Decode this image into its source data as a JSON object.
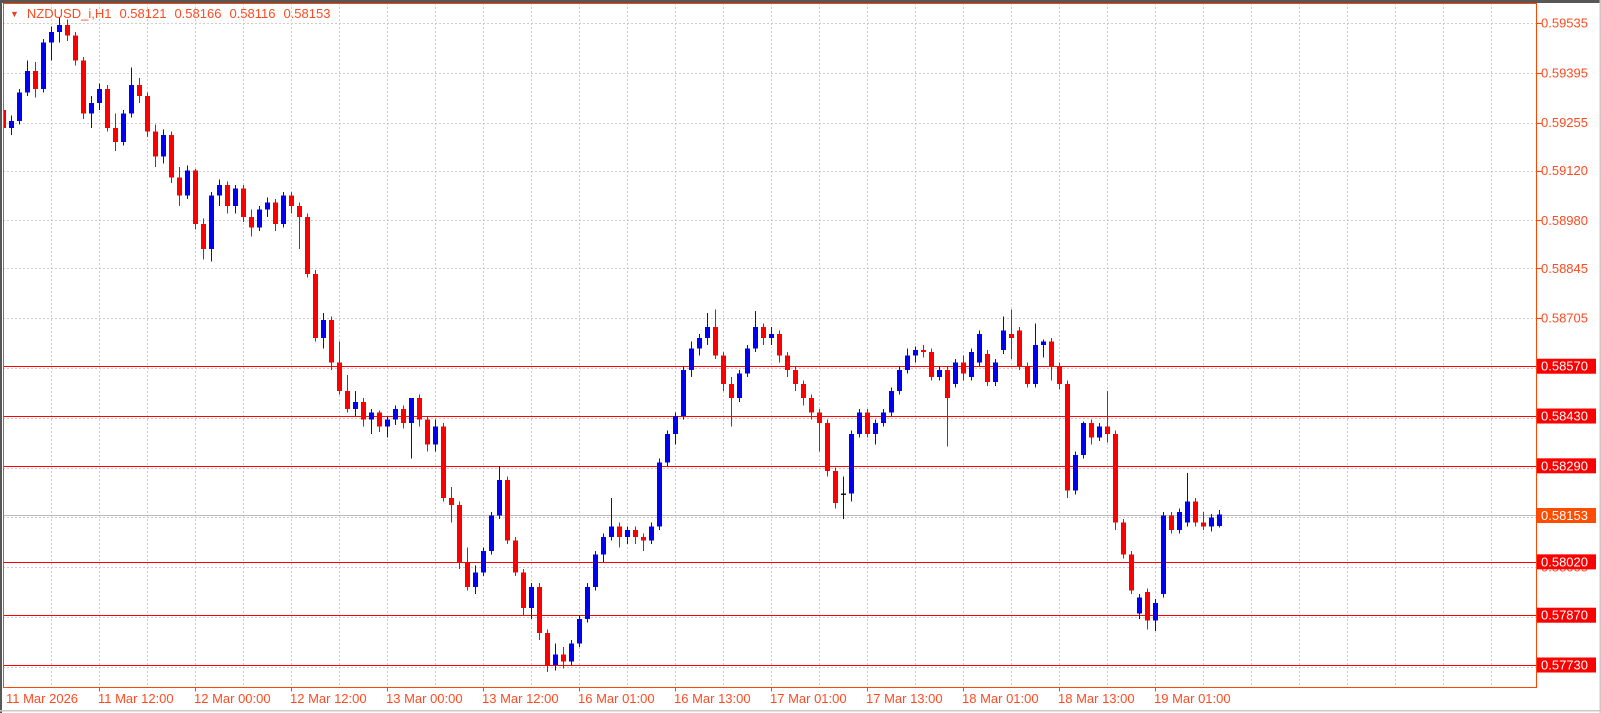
{
  "header": {
    "symbol": "NZDUSD_i,H1",
    "open": "0.58121",
    "high": "0.58166",
    "low": "0.58116",
    "close": "0.58153"
  },
  "colors": {
    "axis_text": "#ff4a21",
    "grid": "#cdcdcd",
    "bull": "#0000f2",
    "bear": "#fb0000",
    "doji_black": "#141414",
    "level_line": "#ff0000",
    "level_box": "#fb0000",
    "bid_line": "#bababa",
    "bid_box": "#ff4d00",
    "box_text": "#ffffff",
    "plot_border": "#ff4500",
    "frame_dark": "#575757",
    "frame_light": "#c9c9c9"
  },
  "chart_data": {
    "type": "candlestick",
    "title": "NZDUSD_i,H1",
    "symbol": "NZDUSD_i",
    "timeframe": "H1",
    "last_candle": {
      "open": 0.58121,
      "high": 0.58166,
      "low": 0.58116,
      "close": 0.58153
    },
    "y_axis": {
      "range": [
        0.5773,
        0.59535
      ],
      "visible_labels": [
        "0.59535",
        "0.59395",
        "0.59255",
        "0.59120",
        "0.58980",
        "0.58845",
        "0.58705"
      ],
      "grid_prices": [
        0.59535,
        0.59395,
        0.59255,
        0.5912,
        0.5898,
        0.58845,
        0.58705,
        0.58565,
        0.58425,
        0.58285,
        0.58145,
        0.58005,
        0.57865,
        0.57725
      ]
    },
    "level_lines": [
      0.5857,
      0.5843,
      0.5829,
      0.5802,
      0.5787,
      0.5773
    ],
    "bid": {
      "price": 0.58153,
      "label": "0.58153"
    },
    "x_axis": {
      "labels": [
        "11 Mar 2026",
        "11 Mar 12:00",
        "12 Mar 00:00",
        "12 Mar 12:00",
        "13 Mar 00:00",
        "13 Mar 12:00",
        "16 Mar 01:00",
        "16 Mar 13:00",
        "17 Mar 01:00",
        "17 Mar 13:00",
        "18 Mar 01:00",
        "18 Mar 13:00",
        "19 Mar 01:00"
      ]
    },
    "black_candle_index": 105,
    "candles": [
      [
        0.5929,
        0.59345,
        0.5918,
        0.5924
      ],
      [
        0.5924,
        0.59275,
        0.5922,
        0.5926
      ],
      [
        0.5926,
        0.5935,
        0.5925,
        0.5934
      ],
      [
        0.5934,
        0.5943,
        0.5933,
        0.594
      ],
      [
        0.594,
        0.59425,
        0.59325,
        0.5935
      ],
      [
        0.5935,
        0.5949,
        0.5934,
        0.5948
      ],
      [
        0.5948,
        0.59525,
        0.5943,
        0.5951
      ],
      [
        0.5951,
        0.5955,
        0.5948,
        0.5953
      ],
      [
        0.5953,
        0.59545,
        0.59485,
        0.595
      ],
      [
        0.595,
        0.5951,
        0.59415,
        0.5943
      ],
      [
        0.5943,
        0.5944,
        0.59265,
        0.5928
      ],
      [
        0.5928,
        0.5933,
        0.5924,
        0.5931
      ],
      [
        0.5931,
        0.59365,
        0.5929,
        0.5935
      ],
      [
        0.5935,
        0.5936,
        0.5923,
        0.5924
      ],
      [
        0.5924,
        0.5928,
        0.59175,
        0.592
      ],
      [
        0.592,
        0.5929,
        0.5919,
        0.5928
      ],
      [
        0.5928,
        0.5941,
        0.5927,
        0.5936
      ],
      [
        0.5936,
        0.5938,
        0.5931,
        0.5933
      ],
      [
        0.5933,
        0.5934,
        0.59215,
        0.5923
      ],
      [
        0.5923,
        0.5925,
        0.5913,
        0.5916
      ],
      [
        0.5916,
        0.59235,
        0.5914,
        0.5922
      ],
      [
        0.5922,
        0.5923,
        0.59085,
        0.591
      ],
      [
        0.591,
        0.5913,
        0.5902,
        0.5905
      ],
      [
        0.5905,
        0.59135,
        0.5904,
        0.5912
      ],
      [
        0.5912,
        0.59125,
        0.58955,
        0.5897
      ],
      [
        0.5897,
        0.58985,
        0.5887,
        0.589
      ],
      [
        0.589,
        0.5906,
        0.58865,
        0.5905
      ],
      [
        0.5905,
        0.59095,
        0.5902,
        0.5908
      ],
      [
        0.5908,
        0.5909,
        0.59,
        0.5902
      ],
      [
        0.5902,
        0.5908,
        0.59,
        0.5907
      ],
      [
        0.5907,
        0.5908,
        0.58975,
        0.5899
      ],
      [
        0.5899,
        0.5901,
        0.58935,
        0.5896
      ],
      [
        0.5896,
        0.5902,
        0.5895,
        0.5901
      ],
      [
        0.5901,
        0.59045,
        0.5899,
        0.5903
      ],
      [
        0.5903,
        0.5904,
        0.5895,
        0.5897
      ],
      [
        0.5897,
        0.5906,
        0.5896,
        0.5905
      ],
      [
        0.5905,
        0.5906,
        0.59,
        0.5902
      ],
      [
        0.5902,
        0.5903,
        0.589,
        0.5899
      ],
      [
        0.5899,
        0.59,
        0.5882,
        0.5883
      ],
      [
        0.5883,
        0.5884,
        0.5864,
        0.5865
      ],
      [
        0.5865,
        0.5872,
        0.5862,
        0.587
      ],
      [
        0.587,
        0.5871,
        0.5856,
        0.5858
      ],
      [
        0.5858,
        0.5864,
        0.5849,
        0.585
      ],
      [
        0.585,
        0.58545,
        0.5844,
        0.5845
      ],
      [
        0.5845,
        0.585,
        0.5843,
        0.5847
      ],
      [
        0.5847,
        0.5848,
        0.584,
        0.5842
      ],
      [
        0.5842,
        0.5845,
        0.5838,
        0.5844
      ],
      [
        0.5844,
        0.58445,
        0.58385,
        0.584
      ],
      [
        0.584,
        0.5843,
        0.5837,
        0.5842
      ],
      [
        0.5842,
        0.5846,
        0.58405,
        0.5845
      ],
      [
        0.5845,
        0.5846,
        0.58395,
        0.5841
      ],
      [
        0.5841,
        0.5848,
        0.5831,
        0.5848
      ],
      [
        0.5848,
        0.5849,
        0.584,
        0.5842
      ],
      [
        0.5842,
        0.5843,
        0.5833,
        0.5835
      ],
      [
        0.5835,
        0.5842,
        0.5833,
        0.584
      ],
      [
        0.584,
        0.5841,
        0.5819,
        0.582
      ],
      [
        0.582,
        0.5823,
        0.5813,
        0.5818
      ],
      [
        0.5818,
        0.5819,
        0.58,
        0.5802
      ],
      [
        0.5802,
        0.5806,
        0.5794,
        0.5795
      ],
      [
        0.5795,
        0.5801,
        0.5793,
        0.5799
      ],
      [
        0.5799,
        0.5806,
        0.5798,
        0.5805
      ],
      [
        0.5805,
        0.5816,
        0.5804,
        0.5815
      ],
      [
        0.5815,
        0.5829,
        0.5814,
        0.5825
      ],
      [
        0.5825,
        0.5826,
        0.5807,
        0.5808
      ],
      [
        0.5808,
        0.5809,
        0.5798,
        0.5799
      ],
      [
        0.5799,
        0.58,
        0.5787,
        0.5789
      ],
      [
        0.5789,
        0.5796,
        0.5786,
        0.5795
      ],
      [
        0.5795,
        0.5796,
        0.578,
        0.5782
      ],
      [
        0.5782,
        0.5783,
        0.5771,
        0.5773
      ],
      [
        0.5773,
        0.5779,
        0.57715,
        0.5776
      ],
      [
        0.5776,
        0.5778,
        0.5772,
        0.5774
      ],
      [
        0.5774,
        0.578,
        0.5773,
        0.5779
      ],
      [
        0.5779,
        0.5787,
        0.5778,
        0.5786
      ],
      [
        0.5786,
        0.5796,
        0.5785,
        0.5795
      ],
      [
        0.5795,
        0.5805,
        0.5794,
        0.5804
      ],
      [
        0.5804,
        0.581,
        0.5802,
        0.5809
      ],
      [
        0.5809,
        0.582,
        0.5808,
        0.5812
      ],
      [
        0.5812,
        0.5813,
        0.5806,
        0.5809
      ],
      [
        0.5809,
        0.5812,
        0.5807,
        0.5811
      ],
      [
        0.5811,
        0.5812,
        0.5807,
        0.5809
      ],
      [
        0.5809,
        0.581,
        0.5805,
        0.5808
      ],
      [
        0.5808,
        0.5813,
        0.5807,
        0.5812
      ],
      [
        0.5812,
        0.5831,
        0.5811,
        0.583
      ],
      [
        0.583,
        0.5839,
        0.5829,
        0.5838
      ],
      [
        0.5838,
        0.5844,
        0.5835,
        0.5843
      ],
      [
        0.5843,
        0.5857,
        0.5842,
        0.5856
      ],
      [
        0.5856,
        0.5864,
        0.5854,
        0.5862
      ],
      [
        0.5862,
        0.5866,
        0.586,
        0.5865
      ],
      [
        0.5865,
        0.5872,
        0.5863,
        0.5868
      ],
      [
        0.5868,
        0.5873,
        0.5859,
        0.586
      ],
      [
        0.586,
        0.5861,
        0.585,
        0.5852
      ],
      [
        0.5852,
        0.5854,
        0.584,
        0.5848
      ],
      [
        0.5848,
        0.5856,
        0.5847,
        0.5855
      ],
      [
        0.5855,
        0.5863,
        0.5854,
        0.5862
      ],
      [
        0.5862,
        0.58725,
        0.5861,
        0.5868
      ],
      [
        0.5868,
        0.5869,
        0.5863,
        0.5865
      ],
      [
        0.5865,
        0.5868,
        0.5863,
        0.5866
      ],
      [
        0.5866,
        0.5867,
        0.5858,
        0.586
      ],
      [
        0.586,
        0.5861,
        0.5854,
        0.5856
      ],
      [
        0.5856,
        0.5857,
        0.585,
        0.5852
      ],
      [
        0.5852,
        0.5853,
        0.5846,
        0.5848
      ],
      [
        0.5848,
        0.5849,
        0.5842,
        0.5844
      ],
      [
        0.5844,
        0.5845,
        0.5833,
        0.5841
      ],
      [
        0.5841,
        0.5842,
        0.5826,
        0.58275
      ],
      [
        0.58275,
        0.58285,
        0.5817,
        0.58185
      ],
      [
        0.58208,
        0.5826,
        0.5814,
        0.58212
      ],
      [
        0.58212,
        0.5839,
        0.5819,
        0.5838
      ],
      [
        0.5838,
        0.5845,
        0.5837,
        0.5844
      ],
      [
        0.5844,
        0.5845,
        0.5837,
        0.5838
      ],
      [
        0.5838,
        0.5842,
        0.5835,
        0.5841
      ],
      [
        0.5841,
        0.5845,
        0.584,
        0.5844
      ],
      [
        0.5844,
        0.5851,
        0.5843,
        0.585
      ],
      [
        0.585,
        0.5857,
        0.5849,
        0.5856
      ],
      [
        0.5856,
        0.5862,
        0.5855,
        0.586
      ],
      [
        0.586,
        0.58625,
        0.5858,
        0.58615
      ],
      [
        0.58615,
        0.5863,
        0.58595,
        0.5861
      ],
      [
        0.5861,
        0.5862,
        0.5853,
        0.5854
      ],
      [
        0.5854,
        0.5857,
        0.5853,
        0.5856
      ],
      [
        0.5856,
        0.5857,
        0.58345,
        0.5848
      ],
      [
        0.5852,
        0.5859,
        0.5851,
        0.5858
      ],
      [
        0.5858,
        0.586,
        0.5853,
        0.5855
      ],
      [
        0.5854,
        0.5862,
        0.5853,
        0.5861
      ],
      [
        0.5858,
        0.5867,
        0.5857,
        0.5866
      ],
      [
        0.58605,
        0.58615,
        0.58515,
        0.58525
      ],
      [
        0.58525,
        0.5859,
        0.58515,
        0.5858
      ],
      [
        0.58615,
        0.5871,
        0.58605,
        0.5867
      ],
      [
        0.5866,
        0.5873,
        0.5859,
        0.5865
      ],
      [
        0.5867,
        0.5868,
        0.5856,
        0.5857
      ],
      [
        0.5857,
        0.5858,
        0.5851,
        0.5852
      ],
      [
        0.5852,
        0.5869,
        0.5851,
        0.5863
      ],
      [
        0.5863,
        0.58645,
        0.58595,
        0.5864
      ],
      [
        0.5864,
        0.5865,
        0.5853,
        0.5857
      ],
      [
        0.5857,
        0.5858,
        0.58505,
        0.5852
      ],
      [
        0.5852,
        0.5853,
        0.582,
        0.5822
      ],
      [
        0.5822,
        0.5833,
        0.5821,
        0.5832
      ],
      [
        0.5832,
        0.58415,
        0.5831,
        0.5841
      ],
      [
        0.5841,
        0.5842,
        0.5835,
        0.5837
      ],
      [
        0.5837,
        0.5841,
        0.5836,
        0.584
      ],
      [
        0.584,
        0.585,
        0.58355,
        0.5838
      ],
      [
        0.5838,
        0.5839,
        0.5811,
        0.5813
      ],
      [
        0.5813,
        0.5814,
        0.5803,
        0.5804
      ],
      [
        0.5804,
        0.5805,
        0.5793,
        0.5794
      ],
      [
        0.57875,
        0.5793,
        0.5786,
        0.5792
      ],
      [
        0.57935,
        0.57945,
        0.5783,
        0.57855
      ],
      [
        0.57855,
        0.57915,
        0.57825,
        0.57905
      ],
      [
        0.5793,
        0.5816,
        0.5792,
        0.5815
      ],
      [
        0.5815,
        0.5816,
        0.581,
        0.5811
      ],
      [
        0.5811,
        0.5817,
        0.581,
        0.5816
      ],
      [
        0.5813,
        0.5827,
        0.5812,
        0.5819
      ],
      [
        0.5819,
        0.582,
        0.5812,
        0.5813
      ],
      [
        0.5813,
        0.5816,
        0.5811,
        0.5812
      ],
      [
        0.5812,
        0.58155,
        0.58105,
        0.58145
      ],
      [
        0.58121,
        0.58166,
        0.58116,
        0.58153
      ]
    ]
  }
}
